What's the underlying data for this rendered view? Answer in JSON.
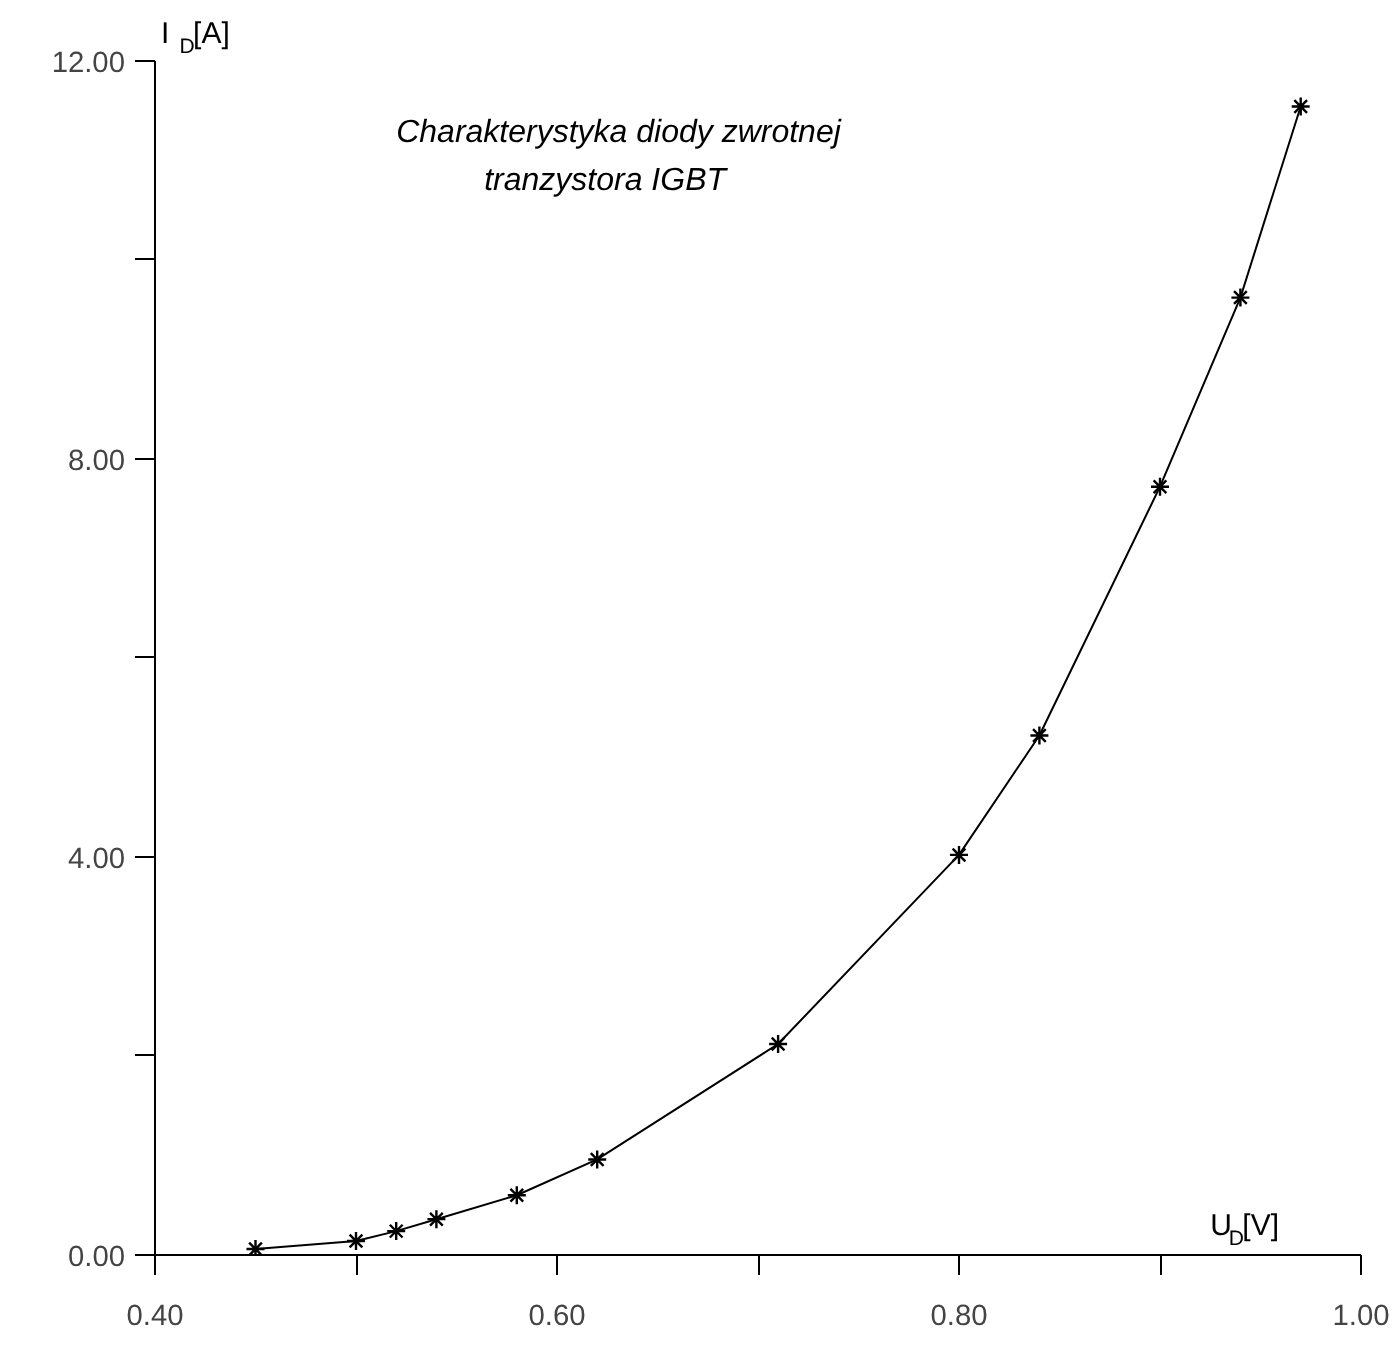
{
  "chart_data": {
    "type": "line",
    "title": "Charakterystyka diody zwrotnej\ntranzystora IGBT",
    "xlabel": "U$_{D}$[V]",
    "ylabel": "I$_{D}$[A]",
    "x": [
      0.45,
      0.5,
      0.52,
      0.54,
      0.58,
      0.62,
      0.71,
      0.8,
      0.84,
      0.9,
      0.94,
      0.97
    ],
    "series": [
      {
        "color": "#000000",
        "values": [
          0.06,
          0.14,
          0.24,
          0.36,
          0.6,
          0.96,
          2.12,
          4.02,
          5.22,
          7.72,
          9.62,
          11.54
        ]
      }
    ],
    "xlim": [
      0.4,
      1.0
    ],
    "ylim": [
      0,
      12
    ],
    "xticks": [
      {
        "value": 0.4,
        "label": "0.40"
      },
      {
        "value": 0.5,
        "label": null
      },
      {
        "value": 0.6,
        "label": "0.60"
      },
      {
        "value": 0.7,
        "label": null
      },
      {
        "value": 0.8,
        "label": "0.80"
      },
      {
        "value": 0.9,
        "label": null
      },
      {
        "value": 1.0,
        "label": "1.00"
      }
    ],
    "yticks": [
      {
        "value": 0,
        "label": "0.00"
      },
      {
        "value": 2,
        "label": null
      },
      {
        "value": 4,
        "label": "4.00"
      },
      {
        "value": 6,
        "label": null
      },
      {
        "value": 8,
        "label": "8.00"
      },
      {
        "value": 10,
        "label": null
      },
      {
        "value": 12,
        "label": "12.00"
      }
    ],
    "marker": "cross",
    "line_style": "solid",
    "grid": false
  }
}
